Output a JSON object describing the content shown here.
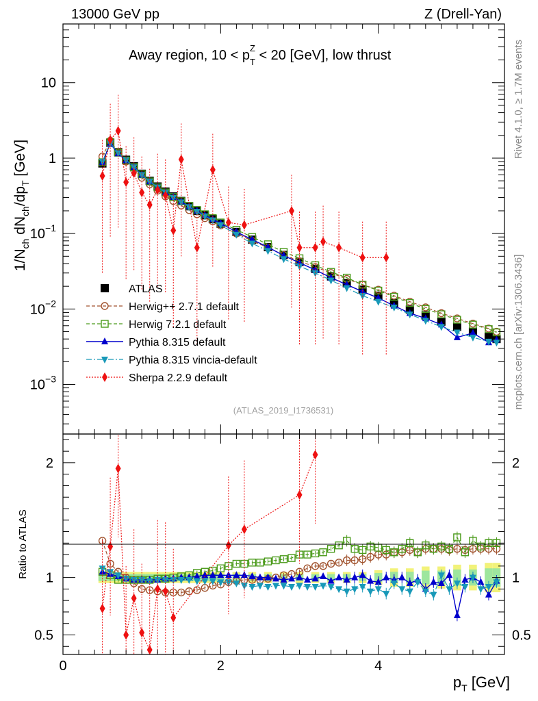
{
  "header": {
    "left": "13000 GeV pp",
    "right": "Z (Drell-Yan)"
  },
  "side_labels": {
    "rivet": "Rivet 4.1.0, ≥ 1.7M events",
    "mcplots": "mcplots.cern.ch [arXiv:1306.3436]"
  },
  "watermark": "(ATLAS_2019_I1736531)",
  "chart_data": [
    {
      "type": "scatter",
      "panel": "main",
      "title": "Away region, 10 < p_T^Z < 20 [GeV], low thrust",
      "title_parts": {
        "pre": "Away region, 10 < p",
        "sup": "Z",
        "sub": "T",
        "post": " < 20 [GeV], low thrust"
      },
      "ylabel": "1/N_ch dN_ch/dp_T [GeV]",
      "yscale": "log",
      "ylim": [
        0.00022,
        60
      ],
      "xlim": [
        0,
        5.6
      ],
      "yticks": [
        {
          "value": 0.001,
          "base": "10",
          "exp": "−3"
        },
        {
          "value": 0.01,
          "base": "10",
          "exp": "−2"
        },
        {
          "value": 0.1,
          "base": "10",
          "exp": "−1"
        },
        {
          "value": 1,
          "base": "1",
          "exp": ""
        },
        {
          "value": 10,
          "base": "10",
          "exp": ""
        }
      ],
      "legend_position": "middle-left",
      "series": [
        {
          "name": "ATLAS",
          "color": "#000000",
          "marker": "square",
          "line": "none",
          "x": [
            0.5,
            0.6,
            0.7,
            0.8,
            0.9,
            1.0,
            1.1,
            1.2,
            1.3,
            1.4,
            1.5,
            1.6,
            1.7,
            1.8,
            1.9,
            2.0,
            2.2,
            2.4,
            2.6,
            2.8,
            3.0,
            3.2,
            3.4,
            3.6,
            3.8,
            4.0,
            4.2,
            4.4,
            4.6,
            4.8,
            5.0,
            5.2,
            5.4,
            5.5
          ],
          "values": [
            0.85,
            1.6,
            1.2,
            0.95,
            0.78,
            0.62,
            0.5,
            0.42,
            0.36,
            0.31,
            0.27,
            0.23,
            0.2,
            0.175,
            0.155,
            0.135,
            0.105,
            0.083,
            0.066,
            0.052,
            0.042,
            0.034,
            0.027,
            0.022,
            0.018,
            0.015,
            0.012,
            0.0098,
            0.0082,
            0.0068,
            0.0058,
            0.005,
            0.0043,
            0.004
          ]
        },
        {
          "name": "Herwig++ 2.7.1 default",
          "color": "#a0522d",
          "marker": "circle-open",
          "line": "dashed",
          "x": [
            0.5,
            0.6,
            0.7,
            0.8,
            0.9,
            1.0,
            1.1,
            1.2,
            1.3,
            1.4,
            1.5,
            1.6,
            1.7,
            1.8,
            1.9,
            2.0,
            2.2,
            2.4,
            2.6,
            2.8,
            3.0,
            3.2,
            3.4,
            3.6,
            3.8,
            4.0,
            4.2,
            4.4,
            4.6,
            4.8,
            5.0,
            5.2,
            5.4,
            5.5
          ],
          "values": [
            1.05,
            1.7,
            1.2,
            0.9,
            0.7,
            0.55,
            0.45,
            0.37,
            0.31,
            0.27,
            0.235,
            0.205,
            0.18,
            0.16,
            0.145,
            0.128,
            0.1,
            0.08,
            0.065,
            0.052,
            0.043,
            0.036,
            0.03,
            0.025,
            0.021,
            0.018,
            0.015,
            0.0125,
            0.0105,
            0.0088,
            0.0075,
            0.0064,
            0.0055,
            0.005
          ]
        },
        {
          "name": "Herwig 7.2.1 default",
          "color": "#4a9a1a",
          "marker": "square-open",
          "line": "dashed",
          "x": [
            0.5,
            0.6,
            0.7,
            0.8,
            0.9,
            1.0,
            1.1,
            1.2,
            1.3,
            1.4,
            1.5,
            1.6,
            1.7,
            1.8,
            1.9,
            2.0,
            2.2,
            2.4,
            2.6,
            2.8,
            3.0,
            3.2,
            3.4,
            3.6,
            3.8,
            4.0,
            4.2,
            4.4,
            4.6,
            4.8,
            5.0,
            5.2,
            5.4,
            5.5
          ],
          "values": [
            0.88,
            1.62,
            1.18,
            0.93,
            0.76,
            0.61,
            0.49,
            0.41,
            0.35,
            0.305,
            0.268,
            0.232,
            0.205,
            0.18,
            0.16,
            0.14,
            0.112,
            0.09,
            0.072,
            0.057,
            0.047,
            0.038,
            0.031,
            0.026,
            0.021,
            0.0175,
            0.0145,
            0.012,
            0.01,
            0.0085,
            0.0072,
            0.0062,
            0.0054,
            0.0049
          ]
        },
        {
          "name": "Pythia 8.315 default",
          "color": "#0000cc",
          "marker": "triangle-up",
          "line": "solid",
          "x": [
            0.5,
            0.6,
            0.7,
            0.8,
            0.9,
            1.0,
            1.1,
            1.2,
            1.3,
            1.4,
            1.5,
            1.6,
            1.7,
            1.8,
            1.9,
            2.0,
            2.2,
            2.4,
            2.6,
            2.8,
            3.0,
            3.2,
            3.4,
            3.6,
            3.8,
            4.0,
            4.2,
            4.4,
            4.6,
            4.8,
            5.0,
            5.2,
            5.4,
            5.5
          ],
          "values": [
            0.88,
            1.55,
            1.15,
            0.93,
            0.76,
            0.6,
            0.49,
            0.41,
            0.35,
            0.305,
            0.265,
            0.228,
            0.2,
            0.175,
            0.155,
            0.137,
            0.105,
            0.083,
            0.066,
            0.051,
            0.041,
            0.033,
            0.026,
            0.021,
            0.017,
            0.014,
            0.011,
            0.0088,
            0.0075,
            0.0062,
            0.0042,
            0.0048,
            0.0036,
            0.0039
          ]
        },
        {
          "name": "Pythia 8.315 vincia-default",
          "color": "#1899b8",
          "marker": "triangle-down",
          "line": "dashdot",
          "x": [
            0.5,
            0.6,
            0.7,
            0.8,
            0.9,
            1.0,
            1.1,
            1.2,
            1.3,
            1.4,
            1.5,
            1.6,
            1.7,
            1.8,
            1.9,
            2.0,
            2.2,
            2.4,
            2.6,
            2.8,
            3.0,
            3.2,
            3.4,
            3.6,
            3.8,
            4.0,
            4.2,
            4.4,
            4.6,
            4.8,
            5.0,
            5.2,
            5.4,
            5.5
          ],
          "values": [
            0.9,
            1.58,
            1.17,
            0.94,
            0.76,
            0.6,
            0.49,
            0.41,
            0.35,
            0.3,
            0.26,
            0.225,
            0.195,
            0.17,
            0.15,
            0.13,
            0.097,
            0.074,
            0.059,
            0.046,
            0.037,
            0.03,
            0.024,
            0.019,
            0.015,
            0.0125,
            0.0105,
            0.0085,
            0.007,
            0.0058,
            0.0049,
            0.0042,
            0.0037,
            0.0036
          ]
        },
        {
          "name": "Sherpa 2.2.9 default",
          "color": "#ee1111",
          "marker": "diamond",
          "line": "dotted",
          "x": [
            0.5,
            0.6,
            0.7,
            0.8,
            0.9,
            1.0,
            1.1,
            1.2,
            1.3,
            1.4,
            1.5,
            1.7,
            1.9,
            2.1,
            2.3,
            2.9,
            3.0,
            3.2,
            3.3,
            3.5,
            3.8,
            4.1
          ],
          "values": [
            0.58,
            1.75,
            2.3,
            0.48,
            0.63,
            0.35,
            0.24,
            0.38,
            0.32,
            0.11,
            0.96,
            0.065,
            0.7,
            0.14,
            0.13,
            0.2,
            0.065,
            0.065,
            0.078,
            0.065,
            0.048,
            0.048
          ]
        }
      ]
    },
    {
      "type": "scatter",
      "panel": "ratio",
      "ylabel": "Ratio to ATLAS",
      "xlabel": "p_T [GeV]",
      "ylim": [
        0.33,
        2.25
      ],
      "xlim": [
        0,
        5.6
      ],
      "yticks": [
        0.5,
        1,
        2
      ],
      "xticks": [
        0,
        2,
        4
      ],
      "band": {
        "color": "#f2f27a",
        "inner_color": "#9ee69e",
        "half_width": [
          0.03,
          0.03,
          0.03,
          0.03,
          0.03,
          0.03,
          0.03,
          0.03,
          0.03,
          0.03,
          0.03,
          0.03,
          0.03,
          0.03,
          0.03,
          0.03,
          0.03,
          0.03,
          0.03,
          0.03,
          0.03,
          0.03,
          0.03,
          0.03,
          0.03,
          0.04,
          0.05,
          0.05,
          0.06,
          0.06,
          0.07,
          0.07,
          0.08,
          0.08
        ]
      },
      "series": [
        {
          "name": "Herwig++ 2.7.1 default",
          "color": "#a0522d",
          "x": [
            0.5,
            0.6,
            0.7,
            0.8,
            0.9,
            1.0,
            1.1,
            1.2,
            1.3,
            1.4,
            1.5,
            1.6,
            1.7,
            1.8,
            1.9,
            2.0,
            2.1,
            2.2,
            2.3,
            2.4,
            2.5,
            2.6,
            2.7,
            2.8,
            2.9,
            3.0,
            3.1,
            3.2,
            3.3,
            3.4,
            3.5,
            3.6,
            3.7,
            3.8,
            3.9,
            4.0,
            4.1,
            4.2,
            4.3,
            4.4,
            4.5,
            4.6,
            4.7,
            4.8,
            4.9,
            5.0,
            5.1,
            5.2,
            5.3,
            5.4,
            5.5
          ],
          "values": [
            1.32,
            1.12,
            1.05,
            1.0,
            0.95,
            0.9,
            0.89,
            0.88,
            0.87,
            0.87,
            0.87,
            0.88,
            0.89,
            0.91,
            0.93,
            0.94,
            0.96,
            0.97,
            0.98,
            0.98,
            0.98,
            0.99,
            1.0,
            1.02,
            1.03,
            1.05,
            1.08,
            1.1,
            1.1,
            1.12,
            1.13,
            1.15,
            1.15,
            1.16,
            1.18,
            1.2,
            1.2,
            1.22,
            1.22,
            1.24,
            1.22,
            1.25,
            1.25,
            1.25,
            1.24,
            1.25,
            1.24,
            1.25,
            1.25,
            1.25,
            1.25
          ]
        },
        {
          "name": "Herwig 7.2.1 default",
          "color": "#4a9a1a",
          "x": [
            0.5,
            0.6,
            0.7,
            0.8,
            0.9,
            1.0,
            1.1,
            1.2,
            1.3,
            1.4,
            1.5,
            1.6,
            1.7,
            1.8,
            1.9,
            2.0,
            2.1,
            2.2,
            2.3,
            2.4,
            2.5,
            2.6,
            2.7,
            2.8,
            2.9,
            3.0,
            3.1,
            3.2,
            3.3,
            3.4,
            3.5,
            3.6,
            3.7,
            3.8,
            3.9,
            4.0,
            4.1,
            4.2,
            4.3,
            4.4,
            4.5,
            4.6,
            4.7,
            4.8,
            4.9,
            5.0,
            5.1,
            5.2,
            5.3,
            5.4,
            5.5
          ],
          "values": [
            1.05,
            1.02,
            0.98,
            0.98,
            0.98,
            0.98,
            0.98,
            0.99,
            0.99,
            1.0,
            1.01,
            1.02,
            1.04,
            1.05,
            1.06,
            1.08,
            1.1,
            1.12,
            1.12,
            1.13,
            1.13,
            1.14,
            1.15,
            1.16,
            1.17,
            1.2,
            1.2,
            1.21,
            1.22,
            1.25,
            1.28,
            1.32,
            1.25,
            1.24,
            1.27,
            1.26,
            1.24,
            1.22,
            1.25,
            1.3,
            1.22,
            1.28,
            1.25,
            1.27,
            1.25,
            1.35,
            1.22,
            1.32,
            1.27,
            1.3,
            1.3
          ]
        },
        {
          "name": "Pythia 8.315 default",
          "color": "#0000cc",
          "x": [
            0.5,
            0.6,
            0.7,
            0.8,
            0.9,
            1.0,
            1.1,
            1.2,
            1.3,
            1.4,
            1.5,
            1.6,
            1.7,
            1.8,
            1.9,
            2.0,
            2.1,
            2.2,
            2.3,
            2.4,
            2.5,
            2.6,
            2.7,
            2.8,
            2.9,
            3.0,
            3.1,
            3.2,
            3.3,
            3.4,
            3.5,
            3.6,
            3.7,
            3.8,
            3.9,
            4.0,
            4.1,
            4.2,
            4.3,
            4.4,
            4.5,
            4.6,
            4.7,
            4.8,
            4.9,
            5.0,
            5.1,
            5.2,
            5.3,
            5.4,
            5.5
          ],
          "values": [
            1.05,
            1.03,
            1.01,
            0.99,
            0.98,
            0.98,
            0.98,
            0.98,
            0.99,
            0.99,
            1.0,
            1.0,
            1.01,
            1.02,
            1.02,
            1.02,
            1.02,
            1.02,
            1.02,
            1.01,
            1.0,
            1.0,
            0.99,
            0.98,
            0.99,
            1.0,
            0.98,
            0.99,
            1.01,
            0.97,
            1.0,
            0.98,
            1.0,
            1.02,
            0.97,
            0.96,
            1.0,
            0.98,
            1.0,
            0.95,
            0.98,
            0.9,
            0.96,
            0.95,
            1.02,
            0.67,
            0.98,
            1.0,
            0.96,
            0.85,
            0.97
          ]
        },
        {
          "name": "Pythia 8.315 vincia-default",
          "color": "#1899b8",
          "x": [
            0.5,
            0.6,
            0.7,
            0.8,
            0.9,
            1.0,
            1.1,
            1.2,
            1.3,
            1.4,
            1.5,
            1.6,
            1.7,
            1.8,
            1.9,
            2.0,
            2.1,
            2.2,
            2.3,
            2.4,
            2.5,
            2.6,
            2.7,
            2.8,
            2.9,
            3.0,
            3.1,
            3.2,
            3.3,
            3.4,
            3.5,
            3.6,
            3.7,
            3.8,
            3.9,
            4.0,
            4.1,
            4.2,
            4.3,
            4.4,
            4.5,
            4.6,
            4.7,
            4.8,
            4.9,
            5.0,
            5.1,
            5.2,
            5.3,
            5.4,
            5.5
          ],
          "values": [
            1.08,
            1.05,
            1.02,
            0.99,
            0.98,
            0.98,
            0.97,
            0.98,
            0.98,
            0.98,
            0.98,
            0.98,
            0.97,
            0.97,
            0.97,
            0.96,
            0.96,
            0.95,
            0.93,
            0.92,
            0.93,
            0.92,
            0.93,
            0.93,
            0.92,
            0.93,
            0.92,
            0.92,
            0.93,
            0.92,
            0.9,
            0.88,
            0.9,
            0.92,
            0.88,
            0.9,
            0.86,
            0.95,
            0.9,
            0.88,
            0.96,
            0.88,
            0.85,
            1.02,
            0.9,
            0.95,
            0.92,
            1.0,
            0.9,
            0.92,
            0.96
          ]
        },
        {
          "name": "Sherpa 2.2.9 default",
          "color": "#ee1111",
          "x": [
            0.5,
            0.6,
            0.7,
            0.8,
            0.9,
            1.0,
            1.1,
            1.2,
            1.3,
            1.4,
            2.1,
            2.3,
            3.0,
            3.2
          ],
          "values": [
            0.73,
            1.27,
            1.95,
            0.5,
            0.82,
            0.52,
            0.37,
            0.9,
            0.88,
            0.65,
            1.28,
            1.42,
            1.72,
            2.07
          ]
        }
      ]
    }
  ]
}
